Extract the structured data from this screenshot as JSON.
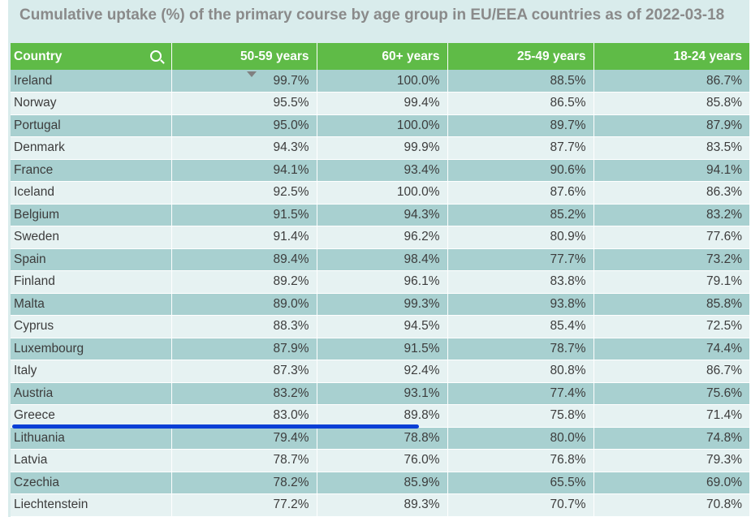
{
  "chart_data": {
    "type": "table",
    "title": "Cumulative uptake (%) of the primary course by age group in EU/EEA countries as of 2022-03-18",
    "columns": [
      "Country",
      "50-59 years",
      "60+ years",
      "25-49 years",
      "18-24 years"
    ],
    "sorted_by": "50-59 years",
    "sort_order": "descending",
    "rows": [
      [
        "Ireland",
        "99.7%",
        "100.0%",
        "88.5%",
        "86.7%"
      ],
      [
        "Norway",
        "95.5%",
        "99.4%",
        "86.5%",
        "85.8%"
      ],
      [
        "Portugal",
        "95.0%",
        "100.0%",
        "89.7%",
        "87.9%"
      ],
      [
        "Denmark",
        "94.3%",
        "99.9%",
        "87.7%",
        "83.5%"
      ],
      [
        "France",
        "94.1%",
        "93.4%",
        "90.6%",
        "94.1%"
      ],
      [
        "Iceland",
        "92.5%",
        "100.0%",
        "87.6%",
        "86.3%"
      ],
      [
        "Belgium",
        "91.5%",
        "94.3%",
        "85.2%",
        "83.2%"
      ],
      [
        "Sweden",
        "91.4%",
        "96.2%",
        "80.9%",
        "77.6%"
      ],
      [
        "Spain",
        "89.4%",
        "98.4%",
        "77.7%",
        "73.2%"
      ],
      [
        "Finland",
        "89.2%",
        "96.1%",
        "83.8%",
        "79.1%"
      ],
      [
        "Malta",
        "89.0%",
        "99.3%",
        "93.8%",
        "85.8%"
      ],
      [
        "Cyprus",
        "88.3%",
        "94.5%",
        "85.4%",
        "72.5%"
      ],
      [
        "Luxembourg",
        "87.9%",
        "91.5%",
        "78.7%",
        "74.4%"
      ],
      [
        "Italy",
        "87.3%",
        "92.4%",
        "80.8%",
        "86.7%"
      ],
      [
        "Austria",
        "83.2%",
        "93.1%",
        "77.4%",
        "75.6%"
      ],
      [
        "Greece",
        "83.0%",
        "89.8%",
        "75.8%",
        "71.4%"
      ],
      [
        "Lithuania",
        "79.4%",
        "78.8%",
        "80.0%",
        "74.8%"
      ],
      [
        "Latvia",
        "78.7%",
        "76.0%",
        "76.8%",
        "79.3%"
      ],
      [
        "Czechia",
        "78.2%",
        "85.9%",
        "65.5%",
        "69.0%"
      ],
      [
        "Liechtenstein",
        "77.2%",
        "89.3%",
        "70.7%",
        "70.8%"
      ]
    ],
    "highlighted_row": "Greece"
  },
  "colors": {
    "header": "#5fbb47",
    "row_odd": "#a8d0d0",
    "row_even": "#e6f2f2",
    "annotation": "#0a3fd6"
  },
  "icons": {
    "search": "search-icon",
    "sort": "sort-descending-icon"
  }
}
